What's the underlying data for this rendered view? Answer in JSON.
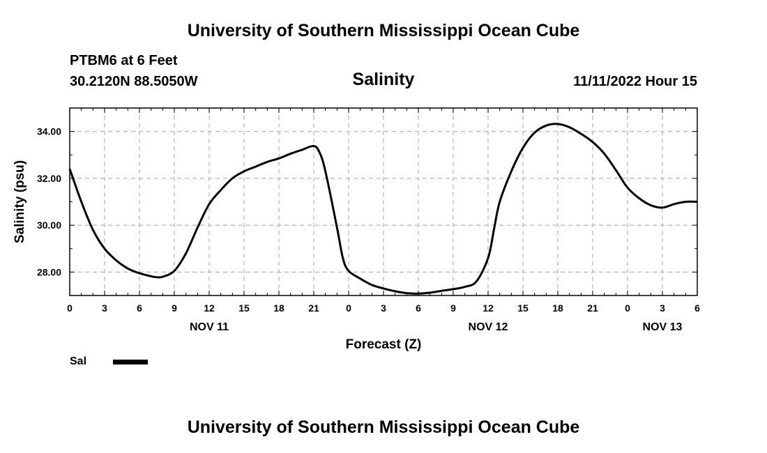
{
  "header": {
    "title": "University of Southern Mississippi Ocean Cube",
    "station": "PTBM6 at 6 Feet",
    "coords": "30.2120N  88.5050W",
    "subtitle": "Salinity",
    "datetime": "11/11/2022 Hour 15"
  },
  "footer": {
    "title": "University of Southern Mississippi Ocean Cube"
  },
  "legend": {
    "label": "Sal",
    "color": "#000000"
  },
  "chart_data": {
    "type": "line",
    "title": "Salinity",
    "xlabel": "Forecast (Z)",
    "ylabel": "Salinity (psu)",
    "xlim": [
      0,
      54
    ],
    "ylim": [
      27.0,
      35.0
    ],
    "x_ticks": [
      0,
      3,
      6,
      9,
      12,
      15,
      18,
      21,
      24,
      27,
      30,
      33,
      36,
      39,
      42,
      45,
      48,
      51,
      54
    ],
    "x_tick_labels": [
      "0",
      "3",
      "6",
      "9",
      "12",
      "15",
      "18",
      "21",
      "0",
      "3",
      "6",
      "9",
      "12",
      "15",
      "18",
      "21",
      "0",
      "3",
      "6"
    ],
    "y_ticks": [
      28,
      30,
      32,
      34
    ],
    "y_tick_labels": [
      "28.00",
      "30.00",
      "32.00",
      "34.00"
    ],
    "day_labels": [
      {
        "label": "NOV 11",
        "x": 12
      },
      {
        "label": "NOV 12",
        "x": 36
      },
      {
        "label": "NOV 13",
        "x": 51
      }
    ],
    "grid": true,
    "series": [
      {
        "name": "Sal",
        "color": "#000000",
        "x": [
          0,
          1,
          2,
          3,
          4,
          5,
          6,
          7,
          7.5,
          8,
          9,
          10,
          11,
          12,
          13,
          14,
          15,
          16,
          17,
          18,
          19,
          20,
          21,
          21.5,
          22,
          23,
          23.5,
          24,
          25,
          26,
          27,
          28,
          29,
          30,
          31,
          32,
          33,
          34,
          35,
          36,
          36.5,
          37,
          38,
          39,
          40,
          41,
          42,
          43,
          44,
          45,
          46,
          47,
          48,
          49,
          50,
          51,
          52,
          53,
          54
        ],
        "values": [
          32.4,
          31.0,
          29.8,
          29.0,
          28.5,
          28.15,
          27.95,
          27.82,
          27.78,
          27.8,
          28.05,
          28.8,
          29.9,
          30.9,
          31.5,
          32.0,
          32.3,
          32.5,
          32.7,
          32.85,
          33.05,
          33.22,
          33.38,
          33.1,
          32.3,
          29.9,
          28.6,
          28.05,
          27.72,
          27.45,
          27.3,
          27.18,
          27.1,
          27.08,
          27.12,
          27.2,
          27.27,
          27.37,
          27.6,
          28.6,
          29.8,
          31.0,
          32.3,
          33.3,
          33.95,
          34.25,
          34.32,
          34.18,
          33.9,
          33.55,
          33.05,
          32.35,
          31.6,
          31.15,
          30.85,
          30.75,
          30.9,
          31.0,
          31.0
        ]
      }
    ]
  }
}
